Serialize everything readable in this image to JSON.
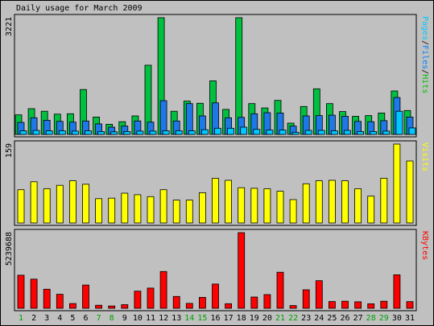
{
  "chart_data": {
    "type": "bar",
    "title": "Daily usage for March 2009",
    "categories": [
      "1",
      "2",
      "3",
      "4",
      "5",
      "6",
      "7",
      "8",
      "9",
      "10",
      "11",
      "12",
      "13",
      "14",
      "15",
      "16",
      "17",
      "18",
      "19",
      "20",
      "21",
      "22",
      "23",
      "24",
      "25",
      "26",
      "27",
      "28",
      "29",
      "30",
      "31"
    ],
    "weekend_days": [
      "1",
      "7",
      "8",
      "14",
      "15",
      "21",
      "22",
      "28",
      "29"
    ],
    "weekend_color": "#00a000",
    "weekday_color": "#000000",
    "panels": [
      {
        "id": "pfh",
        "max_label": "3221",
        "ylim": [
          0,
          3221
        ],
        "legend": [
          {
            "text": "Pages",
            "color": "#00c8ff"
          },
          {
            "text": "/",
            "color": "#000000"
          },
          {
            "text": "Files",
            "color": "#0080ff"
          },
          {
            "text": "/",
            "color": "#000000"
          },
          {
            "text": "Hits",
            "color": "#00c000"
          }
        ],
        "series": [
          {
            "name": "Hits",
            "color": "#00c040",
            "values": [
              540,
              710,
              640,
              560,
              570,
              1240,
              480,
              280,
              350,
              510,
              1910,
              3221,
              640,
              920,
              860,
              1480,
              690,
              3221,
              850,
              730,
              940,
              310,
              770,
              1260,
              850,
              630,
              500,
              520,
              590,
              1200,
              660
            ]
          },
          {
            "name": "Files",
            "color": "#1e78e8",
            "values": [
              330,
              460,
              390,
              360,
              340,
              370,
              290,
              200,
              230,
              370,
              340,
              930,
              370,
              850,
              510,
              870,
              460,
              470,
              570,
              600,
              590,
              230,
              510,
              520,
              530,
              500,
              360,
              350,
              380,
              1020,
              480
            ]
          },
          {
            "name": "Pages",
            "color": "#00c8ff",
            "values": [
              100,
              110,
              100,
              100,
              90,
              100,
              80,
              70,
              80,
              90,
              90,
              100,
              100,
              100,
              130,
              170,
              170,
              200,
              140,
              120,
              120,
              60,
              110,
              110,
              100,
              110,
              80,
              80,
              90,
              640,
              180
            ]
          }
        ]
      },
      {
        "id": "visits",
        "max_label": "159",
        "ylim": [
          0,
          159
        ],
        "legend": [
          {
            "text": "Visits",
            "color": "#ffff00"
          }
        ],
        "series": [
          {
            "name": "Visits",
            "color": "#ffff00",
            "values": [
              67,
              83,
              69,
              76,
              85,
              78,
              49,
              50,
              60,
              57,
              53,
              67,
              46,
              46,
              61,
              90,
              86,
              71,
              70,
              69,
              64,
              47,
              79,
              85,
              86,
              85,
              69,
              54,
              90,
              159,
              125
            ]
          }
        ]
      },
      {
        "id": "kbytes",
        "max_label": "5239688",
        "ylim": [
          0,
          5239688
        ],
        "legend": [
          {
            "text": "KBytes",
            "color": "#ff0000"
          }
        ],
        "series": [
          {
            "name": "KBytes",
            "color": "#ff0000",
            "values": [
              2290000,
              2020000,
              1320000,
              970000,
              330000,
              1610000,
              210000,
              160000,
              250000,
              1190000,
              1400000,
              2550000,
              820000,
              340000,
              760000,
              1680000,
              320000,
              5239688,
              780000,
              950000,
              2500000,
              190000,
              1280000,
              1910000,
              470000,
              490000,
              450000,
              310000,
              490000,
              2320000,
              460000
            ]
          }
        ]
      }
    ]
  }
}
